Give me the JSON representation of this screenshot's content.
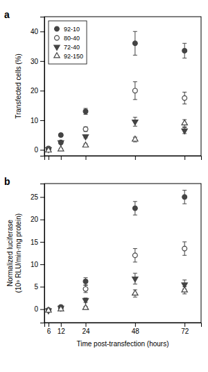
{
  "chart_data": [
    {
      "type": "scatter",
      "title": "a",
      "x": [
        6,
        12,
        24,
        48,
        72
      ],
      "xlim": [
        4,
        80
      ],
      "xticks": [
        6,
        12,
        24,
        48,
        72
      ],
      "ylim": [
        -2,
        45
      ],
      "yticks": [
        0,
        10,
        20,
        30,
        40
      ],
      "ylabel": "Transfected cells (%)",
      "tick_labels": "y",
      "grid": false,
      "legend": "upper left",
      "series": [
        {
          "name": "92-10",
          "color": "#444444",
          "marker": "circle",
          "values": [
            0.5,
            5.0,
            13.0,
            36.0,
            33.5
          ],
          "yerr": [
            0.3,
            0.5,
            1.0,
            4.0,
            2.5
          ]
        },
        {
          "name": "80-40",
          "color": "#444444",
          "marker": "circle-open",
          "values": [
            0.3,
            2.5,
            7.0,
            20.0,
            17.5
          ],
          "yerr": [
            0.2,
            0.5,
            0.8,
            3.0,
            2.0
          ]
        },
        {
          "name": "72-40",
          "color": "#444444",
          "marker": "triangle-down",
          "values": [
            0.2,
            2.5,
            4.5,
            9.5,
            6.5
          ],
          "yerr": [
            0.2,
            0.4,
            0.5,
            1.5,
            1.0
          ]
        },
        {
          "name": "92-150",
          "color": "#444444",
          "marker": "triangle-up-open",
          "values": [
            -0.2,
            0.2,
            1.5,
            3.5,
            9.0
          ],
          "yerr": [
            0.2,
            0.3,
            0.5,
            0.8,
            1.2
          ]
        }
      ]
    },
    {
      "type": "scatter",
      "title": "b",
      "x": [
        6,
        12,
        24,
        48,
        72
      ],
      "xlim": [
        4,
        80
      ],
      "xticks": [
        6,
        12,
        24,
        48,
        72
      ],
      "ylim": [
        -3,
        28
      ],
      "yticks": [
        0,
        5,
        10,
        15,
        20,
        25
      ],
      "xlabel": "Time post-transfection (hours)",
      "ylabel": "Normalized luciferase\n(10⁹ RLU/min·mg protein)",
      "grid": false,
      "series": [
        {
          "name": "92-10",
          "color": "#444444",
          "marker": "circle",
          "values": [
            -0.2,
            0.5,
            6.2,
            22.5,
            25.0
          ],
          "yerr": [
            0.2,
            0.3,
            0.8,
            1.5,
            1.5
          ]
        },
        {
          "name": "80-40",
          "color": "#444444",
          "marker": "circle-open",
          "values": [
            -0.2,
            0.3,
            4.5,
            12.0,
            13.5
          ],
          "yerr": [
            0.2,
            0.3,
            0.8,
            1.5,
            1.5
          ]
        },
        {
          "name": "72-40",
          "color": "#444444",
          "marker": "triangle-down",
          "values": [
            -0.3,
            0.3,
            2.0,
            6.8,
            5.5
          ],
          "yerr": [
            0.2,
            0.3,
            0.5,
            1.2,
            1.0
          ]
        },
        {
          "name": "92-150",
          "color": "#444444",
          "marker": "triangle-up-open",
          "values": [
            -0.3,
            0.0,
            0.3,
            3.5,
            4.2
          ],
          "yerr": [
            0.2,
            0.2,
            0.3,
            0.8,
            0.8
          ]
        }
      ]
    }
  ]
}
